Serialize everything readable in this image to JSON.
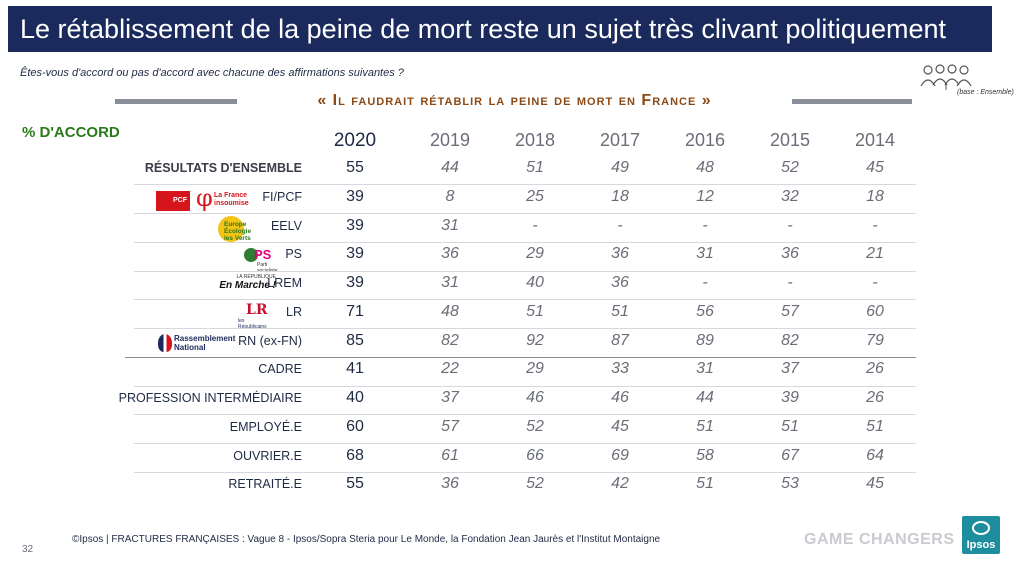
{
  "title": "Le rétablissement de la peine de mort reste un sujet très clivant politiquement",
  "subtitle": "Êtes-vous d'accord ou pas d'accord avec chacune des affirmations suivantes ?",
  "base_note": "(base : Ensemble)",
  "question": "« Il faudrait rétablir la peine de mort en France »",
  "accord_label": "% D'ACCORD",
  "logos": {
    "pcf": "PCF",
    "lfi_line1": "La France",
    "lfi_line2": "insoumise",
    "eelv_line1": "Europe",
    "eelv_line2": "Écologie",
    "eelv_line3": "les Verts",
    "ps": "PS",
    "ps_sub": "Parti socialiste",
    "lrem_sup": "LA RÉPUBLIQUE",
    "lrem_main": "En Marche !",
    "lr_main": "LR",
    "lr_sub": "les Républicains",
    "rn_line1": "Rassemblement",
    "rn_line2": "National"
  },
  "footer": "©Ipsos | FRACTURES FRANÇAISES : Vague 8 - Ipsos/Sopra Steria pour Le Monde, la Fondation Jean Jaurès et l'Institut Montaigne",
  "page_number": "32",
  "brand_tagline": "GAME CHANGERS",
  "brand_name": "Ipsos",
  "colors": {
    "title_bg": "#1b2a5c",
    "question_text": "#8b4a16",
    "accord_label": "#2a7a1c",
    "ipsos": "#1e8e9e"
  },
  "icons": [
    "people-group-icon",
    "party-logo-icons",
    "ipsos-logo-icon"
  ],
  "chart_data": {
    "type": "table",
    "columns": [
      "2020",
      "2019",
      "2018",
      "2017",
      "2016",
      "2015",
      "2014"
    ],
    "rows": [
      {
        "label": "RÉSULTATS D'ENSEMBLE",
        "values": [
          "55",
          "44",
          "51",
          "49",
          "48",
          "52",
          "45"
        ]
      },
      {
        "label": "FI/PCF",
        "values": [
          "39",
          "8",
          "25",
          "18",
          "12",
          "32",
          "18"
        ]
      },
      {
        "label": "EELV",
        "values": [
          "39",
          "31",
          "-",
          "-",
          "-",
          "-",
          "-"
        ]
      },
      {
        "label": "PS",
        "values": [
          "39",
          "36",
          "29",
          "36",
          "31",
          "36",
          "21"
        ]
      },
      {
        "label": "LREM",
        "values": [
          "39",
          "31",
          "40",
          "36",
          "-",
          "-",
          "-"
        ]
      },
      {
        "label": "LR",
        "values": [
          "71",
          "48",
          "51",
          "51",
          "56",
          "57",
          "60"
        ]
      },
      {
        "label": "RN (ex-FN)",
        "values": [
          "85",
          "82",
          "92",
          "87",
          "89",
          "82",
          "79"
        ]
      },
      {
        "label": "CADRE",
        "values": [
          "41",
          "22",
          "29",
          "33",
          "31",
          "37",
          "26"
        ]
      },
      {
        "label": "PROFESSION INTERMÉDIAIRE",
        "values": [
          "40",
          "37",
          "46",
          "46",
          "44",
          "39",
          "26"
        ]
      },
      {
        "label": "EMPLOYÉ.E",
        "values": [
          "60",
          "57",
          "52",
          "45",
          "51",
          "51",
          "51"
        ]
      },
      {
        "label": "OUVRIER.E",
        "values": [
          "68",
          "61",
          "66",
          "69",
          "58",
          "67",
          "64"
        ]
      },
      {
        "label": "RETRAITÉ.E",
        "values": [
          "55",
          "36",
          "52",
          "42",
          "51",
          "53",
          "45"
        ]
      }
    ]
  }
}
